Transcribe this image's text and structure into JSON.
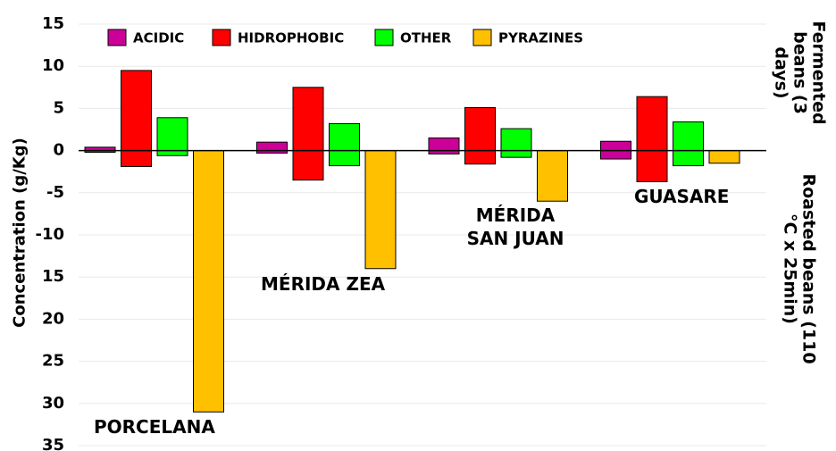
{
  "chart_data": {
    "type": "floating-bar",
    "y_label": "Concentration (g/Kg)",
    "upper_label": "Fermented beans (3 days)",
    "lower_label": "Roasted beans (110 °C x 25min)",
    "categories": [
      "PORCELANA",
      "MÉRIDA ZEA",
      "MÉRIDA SAN JUAN",
      "GUASARE"
    ],
    "series": [
      {
        "name": "ACIDIC",
        "color": "#cc0099",
        "fermented": [
          0.4,
          1.0,
          1.5,
          1.1
        ],
        "roasted": [
          -0.2,
          -0.3,
          -0.4,
          -1.0
        ]
      },
      {
        "name": "HIDROPHOBIC",
        "color": "#ff0000",
        "fermented": [
          9.5,
          7.5,
          5.1,
          6.4
        ],
        "roasted": [
          -1.9,
          -3.5,
          -1.6,
          -3.7
        ]
      },
      {
        "name": "OTHER",
        "color": "#00ff00",
        "fermented": [
          3.9,
          3.2,
          2.6,
          3.4
        ],
        "roasted": [
          -0.6,
          -1.8,
          -0.8,
          -1.8
        ]
      },
      {
        "name": "PYRAZINES",
        "color": "#ffc000",
        "fermented": [
          0,
          0,
          0,
          0
        ],
        "roasted": [
          -31,
          -14,
          -6,
          -1.5
        ]
      }
    ],
    "ylim": [
      -35,
      15
    ],
    "yticks": [
      15,
      10,
      5,
      0,
      -5,
      -10,
      {
        "value": -15,
        "label": "15"
      },
      {
        "value": -20,
        "label": "20"
      },
      {
        "value": -25,
        "label": "25"
      },
      {
        "value": -30,
        "label": "30"
      },
      {
        "value": -35,
        "label": "35"
      }
    ],
    "grid": true
  }
}
